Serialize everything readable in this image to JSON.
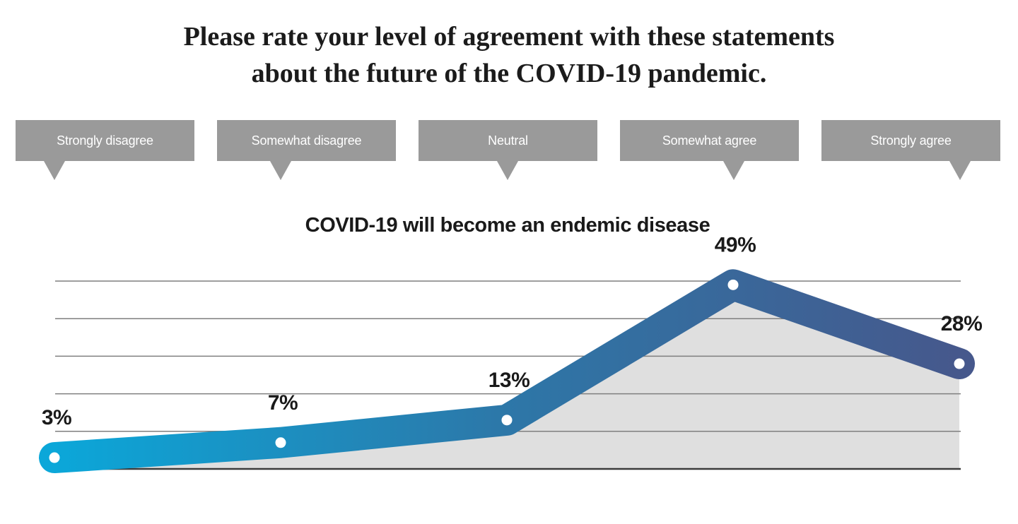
{
  "page_title": {
    "line1": "Please rate your level of agreement with these statements",
    "line2": "about the future of the COVID-19 pandemic."
  },
  "chart_data": {
    "type": "line",
    "title": "COVID-19 will become an endemic disease",
    "categories": [
      "Strongly disagree",
      "Somewhat disagree",
      "Neutral",
      "Somewhat agree",
      "Strongly agree"
    ],
    "values": [
      3,
      7,
      13,
      49,
      28
    ],
    "data_labels": [
      "3%",
      "7%",
      "13%",
      "49%",
      "28%"
    ],
    "ylim": [
      0,
      50
    ],
    "gridline_step": 10,
    "grid": true,
    "area_under_line": true,
    "legend": "none",
    "colors": {
      "line_gradient": [
        "#0ba7d9",
        "#2d77a8",
        "#46588c"
      ],
      "area_fill": "#dfdfdf",
      "gridline": "#7f7f7f",
      "baseline": "#3a3a3a",
      "marker_fill": "#ffffff",
      "scale_box_bg": "#9a9a9a",
      "scale_box_text": "#ffffff",
      "label_text": "#1a1a1a"
    }
  }
}
